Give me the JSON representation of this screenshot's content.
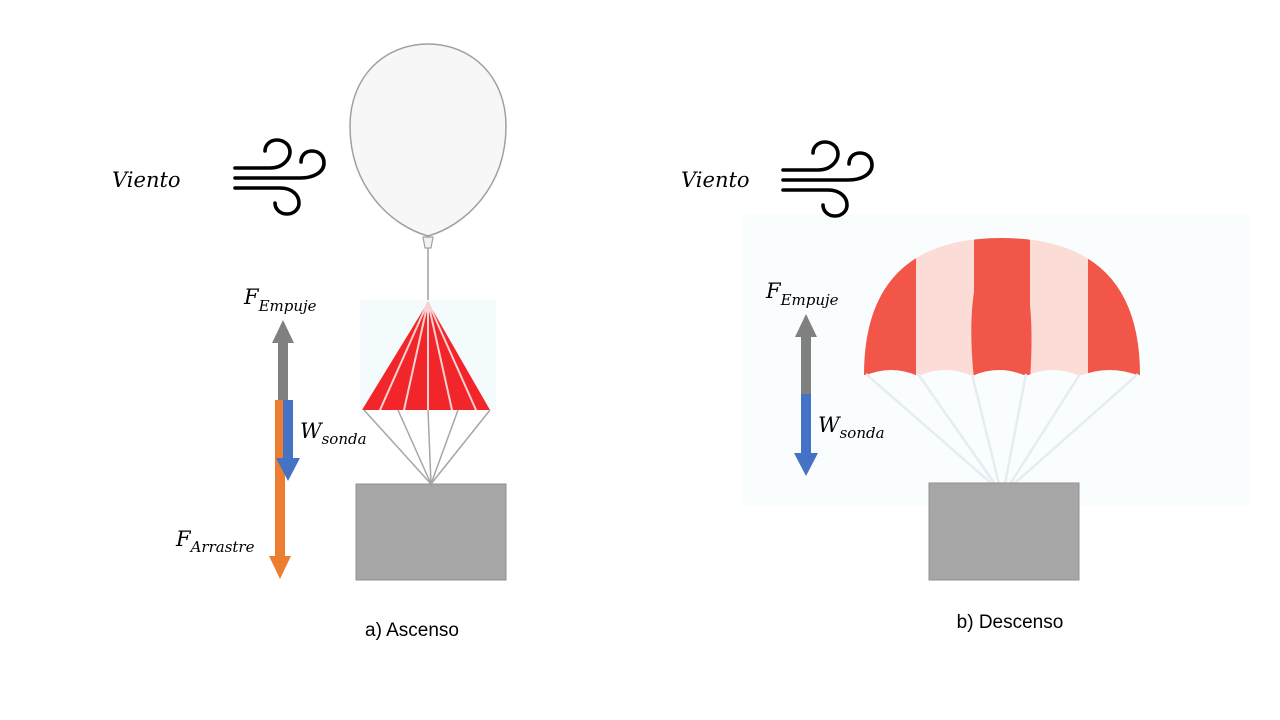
{
  "colors": {
    "background": "#ffffff",
    "buoyancy_arrow": "#808080",
    "weight_arrow": "#4472c4",
    "drag_arrow": "#ed7d31",
    "payload_box": "#a6a6a6",
    "balloon_fill": "#f7f7f7",
    "balloon_stroke": "#a0a0a0",
    "small_parachute": "#f2262a",
    "canopy_dark": "#f25649",
    "canopy_light": "#fbdcd6",
    "wind_icon": "#000000"
  },
  "panels": {
    "ascent": {
      "caption": "a) Ascenso",
      "wind": {
        "label": "Viento",
        "icon": "wind-icon"
      },
      "forces": {
        "buoyancy": {
          "symbol": "F",
          "subscript": "Empuje"
        },
        "weight": {
          "symbol": "W",
          "subscript": "sonda"
        },
        "drag": {
          "symbol": "F",
          "subscript": "Arrastre"
        }
      }
    },
    "descent": {
      "caption": "b) Descenso",
      "wind": {
        "label": "Viento",
        "icon": "wind-icon"
      },
      "forces": {
        "buoyancy": {
          "symbol": "F",
          "subscript": "Empuje"
        },
        "weight": {
          "symbol": "W",
          "subscript": "sonda"
        }
      }
    }
  }
}
